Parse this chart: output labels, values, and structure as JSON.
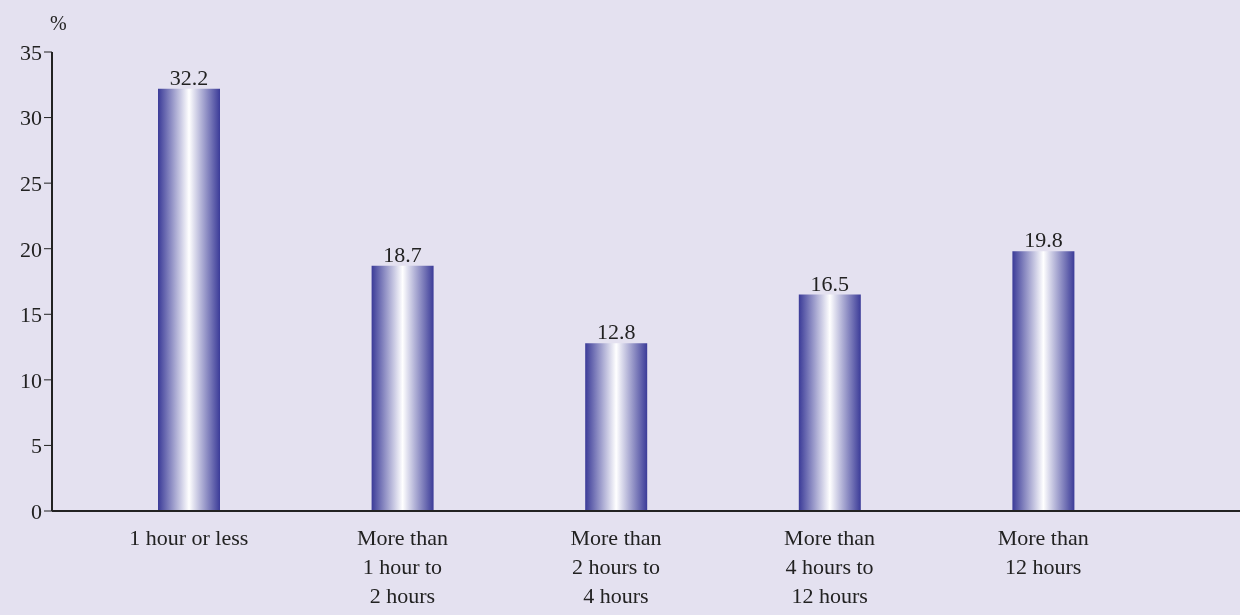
{
  "chart_data": {
    "type": "bar",
    "ylabel": "%",
    "categories": [
      "1 hour or less",
      "More than\n1 hour to\n2 hours",
      "More than\n2 hours to\n4 hours",
      "More than\n4 hours to\n12 hours",
      "More than\n12 hours"
    ],
    "values": [
      32.2,
      18.7,
      12.8,
      16.5,
      19.8
    ],
    "color": "#3b3b98",
    "ylim": [
      0,
      35
    ],
    "yticks": [
      0,
      5,
      10,
      15,
      20,
      25,
      30,
      35
    ],
    "grid": false,
    "data_labels": true
  }
}
